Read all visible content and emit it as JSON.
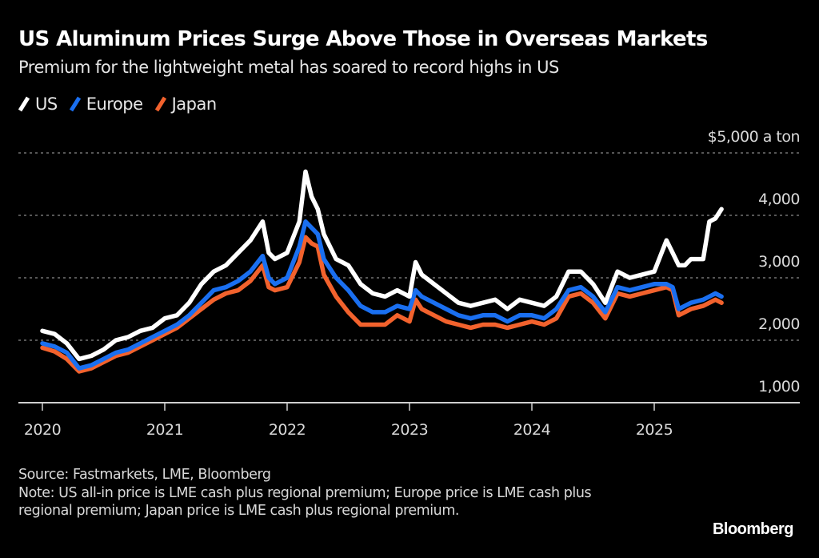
{
  "header": {
    "title": "US Aluminum Prices Surge Above Those in Overseas Markets",
    "subtitle": "Premium for the lightweight metal has soared to record highs in US"
  },
  "legend": [
    {
      "label": "US",
      "color": "#ffffff"
    },
    {
      "label": "Europe",
      "color": "#1a6ff0"
    },
    {
      "label": "Japan",
      "color": "#f2622d"
    }
  ],
  "footer": {
    "source": "Source: Fastmarkets, LME, Bloomberg",
    "note": "Note: US all-in price is LME cash plus regional premium; Europe price is LME cash plus regional premium; Japan price is LME cash plus regional premium.",
    "brand": "Bloomberg"
  },
  "chart_data": {
    "type": "line",
    "title": "US Aluminum Prices Surge Above Those in Overseas Markets",
    "subtitle": "Premium for the lightweight metal has soared to record highs in US",
    "xlabel": "",
    "ylabel": "$ a ton",
    "y_unit_label": "$5,000 a ton",
    "ylim": [
      1000,
      5000
    ],
    "xlim": [
      2020.0,
      2026.2
    ],
    "y_ticks": [
      {
        "value": 5000,
        "label": "$5,000 a ton"
      },
      {
        "value": 4000,
        "label": "4,000"
      },
      {
        "value": 3000,
        "label": "3,000"
      },
      {
        "value": 2000,
        "label": "2,000"
      },
      {
        "value": 1000,
        "label": "1,000"
      }
    ],
    "x_ticks": [
      {
        "value": 2020,
        "label": "2020"
      },
      {
        "value": 2021,
        "label": "2021"
      },
      {
        "value": 2022,
        "label": "2022"
      },
      {
        "value": 2023,
        "label": "2023"
      },
      {
        "value": 2024,
        "label": "2024"
      },
      {
        "value": 2025,
        "label": "2025"
      }
    ],
    "grid": true,
    "legend_position": "top-left",
    "x": [
      2020.0,
      2020.1,
      2020.2,
      2020.3,
      2020.4,
      2020.5,
      2020.6,
      2020.7,
      2020.8,
      2020.9,
      2021.0,
      2021.1,
      2021.2,
      2021.3,
      2021.4,
      2021.5,
      2021.6,
      2021.7,
      2021.8,
      2021.85,
      2021.9,
      2022.0,
      2022.1,
      2022.15,
      2022.2,
      2022.25,
      2022.3,
      2022.4,
      2022.5,
      2022.6,
      2022.7,
      2022.8,
      2022.9,
      2023.0,
      2023.05,
      2023.1,
      2023.2,
      2023.3,
      2023.4,
      2023.5,
      2023.6,
      2023.7,
      2023.8,
      2023.9,
      2024.0,
      2024.1,
      2024.2,
      2024.3,
      2024.4,
      2024.5,
      2024.6,
      2024.7,
      2024.8,
      2024.9,
      2025.0,
      2025.1,
      2025.15,
      2025.2,
      2025.25,
      2025.3,
      2025.4,
      2025.45,
      2025.5,
      2025.55
    ],
    "series": [
      {
        "name": "US",
        "color": "#ffffff",
        "values": [
          2150,
          2100,
          1950,
          1700,
          1750,
          1850,
          2000,
          2050,
          2150,
          2200,
          2350,
          2400,
          2600,
          2900,
          3100,
          3200,
          3400,
          3600,
          3900,
          3400,
          3300,
          3400,
          3900,
          4700,
          4300,
          4100,
          3700,
          3300,
          3200,
          2900,
          2750,
          2700,
          2800,
          2700,
          3250,
          3050,
          2900,
          2750,
          2600,
          2550,
          2600,
          2650,
          2500,
          2650,
          2600,
          2550,
          2700,
          3100,
          3100,
          2900,
          2600,
          3100,
          3000,
          3050,
          3100,
          3600,
          3400,
          3200,
          3200,
          3300,
          3300,
          3900,
          3950,
          4100
        ]
      },
      {
        "name": "Europe",
        "color": "#1a6ff0",
        "values": [
          1950,
          1900,
          1800,
          1550,
          1600,
          1700,
          1800,
          1850,
          1950,
          2050,
          2150,
          2250,
          2400,
          2600,
          2800,
          2850,
          2950,
          3100,
          3350,
          3000,
          2900,
          3000,
          3500,
          3900,
          3800,
          3700,
          3300,
          3000,
          2800,
          2550,
          2450,
          2450,
          2550,
          2500,
          2800,
          2700,
          2600,
          2500,
          2400,
          2350,
          2400,
          2400,
          2300,
          2400,
          2400,
          2350,
          2500,
          2800,
          2850,
          2700,
          2450,
          2850,
          2800,
          2850,
          2900,
          2900,
          2850,
          2500,
          2550,
          2600,
          2650,
          2700,
          2750,
          2700
        ]
      },
      {
        "name": "Japan",
        "color": "#f2622d",
        "values": [
          1880,
          1820,
          1700,
          1500,
          1550,
          1650,
          1750,
          1800,
          1900,
          2000,
          2100,
          2200,
          2350,
          2500,
          2650,
          2750,
          2800,
          2950,
          3200,
          2850,
          2800,
          2850,
          3250,
          3650,
          3550,
          3500,
          3050,
          2700,
          2450,
          2250,
          2250,
          2250,
          2400,
          2300,
          2650,
          2500,
          2400,
          2300,
          2250,
          2200,
          2250,
          2250,
          2200,
          2250,
          2300,
          2250,
          2350,
          2700,
          2750,
          2600,
          2350,
          2750,
          2700,
          2750,
          2800,
          2850,
          2800,
          2400,
          2450,
          2500,
          2550,
          2600,
          2650,
          2600
        ]
      }
    ]
  }
}
